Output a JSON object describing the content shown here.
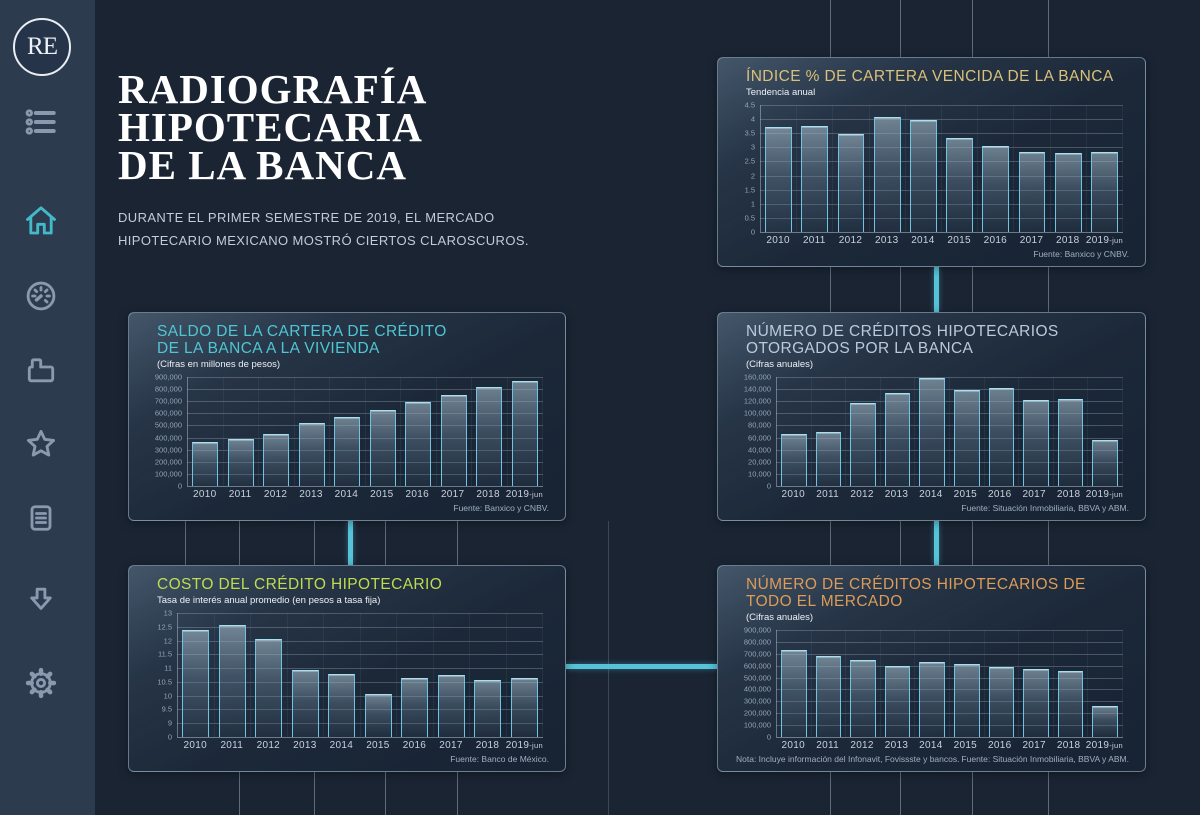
{
  "theme": {
    "page_bg": "#1a2433",
    "sidebar_bg": "#2d3b4f",
    "accent": "#56c3d8",
    "text": "#f2f5f8",
    "text_dim": "#c2cbd6",
    "bar_border": "#72c2e2",
    "icon": "#8a99ad",
    "icon_active": "#43bac9"
  },
  "sidebar": {
    "logo": "RE",
    "nav": [
      {
        "icon": "list-menu-icon",
        "active": false
      },
      {
        "icon": "home-icon",
        "active": true
      },
      {
        "icon": "gauge-icon",
        "active": false
      },
      {
        "icon": "printer-icon",
        "active": false
      },
      {
        "icon": "star-icon",
        "active": false
      },
      {
        "icon": "document-icon",
        "active": false
      },
      {
        "icon": "download-arrow-icon",
        "active": false
      },
      {
        "icon": "gear-icon",
        "active": false
      }
    ]
  },
  "header": {
    "title_lines": [
      "RADIOGRAFÍA",
      "HIPOTECARIA",
      "DE LA BANCA"
    ],
    "subtitle": "DURANTE EL PRIMER SEMESTRE DE 2019, EL MERCADO HIPOTECARIO MEXICANO MOSTRÓ CIERTOS CLAROSCUROS."
  },
  "chart_data": [
    {
      "id": "indice-cartera-vencida",
      "type": "bar",
      "title_lines": [
        "ÍNDICE % DE CARTERA VENCIDA DE LA BANCA"
      ],
      "title_color": "#d9c07b",
      "subtitle": "Tendencia anual",
      "categories": [
        "2010",
        "2011",
        "2012",
        "2013",
        "2014",
        "2015",
        "2016",
        "2017",
        "2018",
        "2019-jun"
      ],
      "values": [
        3.72,
        3.77,
        3.46,
        4.08,
        3.97,
        3.32,
        3.04,
        2.84,
        2.8,
        2.84
      ],
      "y_ticks": [
        "4.5",
        "4",
        "3.5",
        "3",
        "2.5",
        "2",
        "1.5",
        "1",
        "0.5",
        "0"
      ],
      "ylim": [
        0,
        4.5
      ],
      "axis_width": 24,
      "fuente": "Fuente: Banxico y CNBV."
    },
    {
      "id": "saldo-cartera-credito-vivienda",
      "type": "bar",
      "title_lines": [
        "SALDO DE LA CARTERA DE CRÉDITO",
        "DE LA BANCA A LA VIVIENDA"
      ],
      "title_color": "#4fc6d3",
      "subtitle": "(Cifras en millones de pesos)",
      "categories": [
        "2010",
        "2011",
        "2012",
        "2013",
        "2014",
        "2015",
        "2016",
        "2017",
        "2018",
        "2019-jun"
      ],
      "values": [
        365000,
        390000,
        430000,
        520000,
        570000,
        630000,
        690000,
        755000,
        818000,
        865000
      ],
      "y_ticks": [
        "900,000",
        "800,000",
        "700,000",
        "600,000",
        "500,000",
        "400,000",
        "300,000",
        "200,000",
        "100,000",
        "0"
      ],
      "ylim": [
        0,
        900000
      ],
      "axis_width": 40,
      "fuente": "Fuente: Banxico y CNBV."
    },
    {
      "id": "creditos-otorgados-banca",
      "type": "bar",
      "title_lines": [
        "NÚMERO DE CRÉDITOS HIPOTECARIOS",
        "OTORGADOS POR LA BANCA"
      ],
      "title_color": "#bcc9dc",
      "subtitle": "(Cifras anuales)",
      "categories": [
        "2010",
        "2011",
        "2012",
        "2013",
        "2014",
        "2015",
        "2016",
        "2017",
        "2018",
        "2019-jun"
      ],
      "values": [
        76000,
        79000,
        122000,
        137000,
        159000,
        141500,
        144000,
        126000,
        127500,
        67000
      ],
      "y_ticks": [
        "160,000",
        "140,000",
        "120,000",
        "100,000",
        "80,000",
        "60,000",
        "40,000",
        "20,000",
        "10,000",
        "0"
      ],
      "ylim": [
        0,
        160000
      ],
      "axis_width": 40,
      "fuente": "Fuente: Situación Inmobiliaria, BBVA y ABM."
    },
    {
      "id": "costo-credito-hipotecario",
      "type": "bar",
      "title_lines": [
        "COSTO DEL CRÉDITO HIPOTECARIO"
      ],
      "title_color": "#bedd4e",
      "subtitle": "Tasa de interés anual promedio (en pesos a tasa fija)",
      "categories": [
        "2010",
        "2011",
        "2012",
        "2013",
        "2014",
        "2015",
        "2016",
        "2017",
        "2018",
        "2019-jun"
      ],
      "values": [
        12.4,
        12.55,
        12.05,
        10.95,
        10.8,
        10.05,
        10.65,
        10.75,
        10.58,
        10.65
      ],
      "y_ticks": [
        "13",
        "12.5",
        "12",
        "11.5",
        "11",
        "10.5",
        "10",
        "9.5",
        "9",
        "0"
      ],
      "broken_scale": {
        "base": 9,
        "step": 0.5,
        "base_intervals": 1,
        "intervals": 9
      },
      "axis_width": 30,
      "fuente": "Fuente: Banco de México."
    },
    {
      "id": "creditos-todo-el-mercado",
      "type": "bar",
      "title_lines": [
        "NÚMERO DE CRÉDITOS HIPOTECARIOS DE TODO EL MERCADO"
      ],
      "title_color": "#dd9c58",
      "subtitle": "(Cifras anuales)",
      "categories": [
        "2010",
        "2011",
        "2012",
        "2013",
        "2014",
        "2015",
        "2016",
        "2017",
        "2018",
        "2019-jun"
      ],
      "values": [
        730000,
        680000,
        650000,
        600000,
        628000,
        615000,
        585000,
        570000,
        558000,
        265000
      ],
      "y_ticks": [
        "900,000",
        "800,000",
        "700,000",
        "600,000",
        "500,000",
        "400,000",
        "300,000",
        "200,000",
        "100,000",
        "0"
      ],
      "ylim": [
        0,
        900000
      ],
      "axis_width": 40,
      "nota": "Nota: Incluye información del Infonavit, Fovissste y bancos.",
      "fuente": "Fuente: Situación Inmobiliaria, BBVA y ABM."
    }
  ]
}
